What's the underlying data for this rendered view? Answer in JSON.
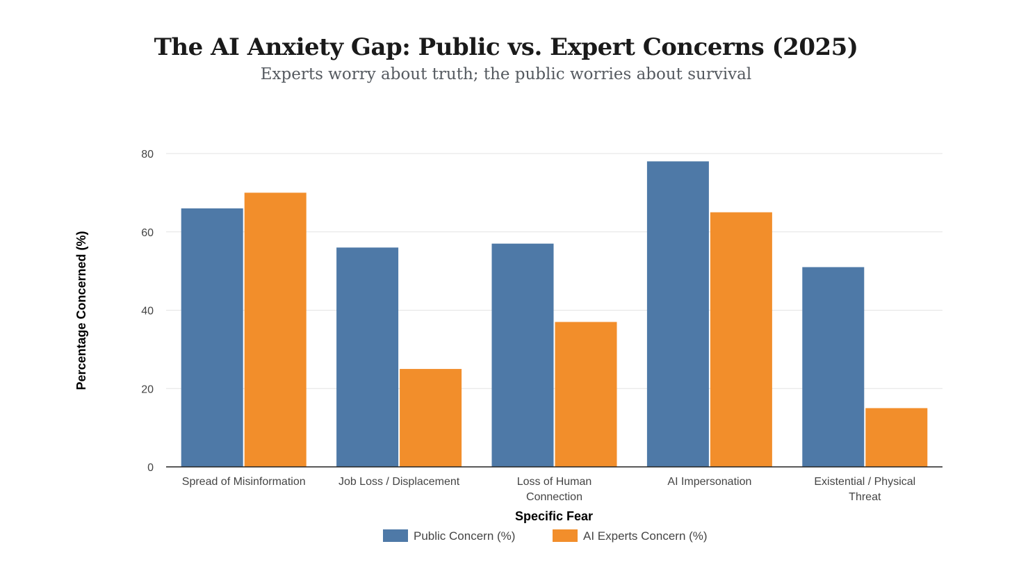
{
  "chart_data": {
    "type": "bar",
    "title": "The AI Anxiety Gap: Public vs. Expert Concerns (2025)",
    "subtitle": "Experts worry about truth; the public worries about survival",
    "xlabel": "Specific Fear",
    "ylabel": "Percentage Concerned (%)",
    "ylim": [
      0,
      80
    ],
    "yticks": [
      0,
      20,
      40,
      60,
      80
    ],
    "grid": true,
    "legend_position": "bottom",
    "categories": [
      [
        "Spread of Misinformation"
      ],
      [
        "Job Loss / Displacement"
      ],
      [
        "Loss of Human",
        "Connection"
      ],
      [
        "AI Impersonation"
      ],
      [
        "Existential / Physical",
        "Threat"
      ]
    ],
    "series": [
      {
        "name": "Public Concern (%)",
        "color": "#4e79a7",
        "values": [
          66,
          56,
          57,
          78,
          51
        ]
      },
      {
        "name": "AI Experts Concern (%)",
        "color": "#f28e2b",
        "values": [
          70,
          25,
          37,
          65,
          15
        ]
      }
    ]
  }
}
